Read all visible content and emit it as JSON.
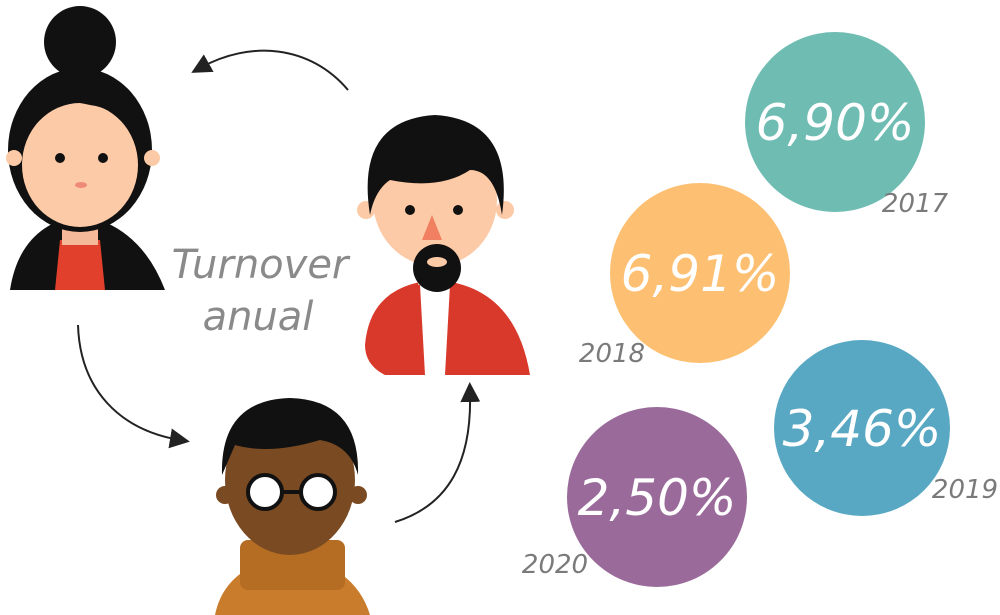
{
  "title_lines": [
    "Turnover",
    "anual"
  ],
  "items": [
    {
      "value": "6,90%",
      "year": "2017",
      "color": "#6fbcb3"
    },
    {
      "value": "6,91%",
      "year": "2018",
      "color": "#fdbf71"
    },
    {
      "value": "3,46%",
      "year": "2019",
      "color": "#58a8c3"
    },
    {
      "value": "2,50%",
      "year": "2020",
      "color": "#9a6b9a"
    }
  ]
}
